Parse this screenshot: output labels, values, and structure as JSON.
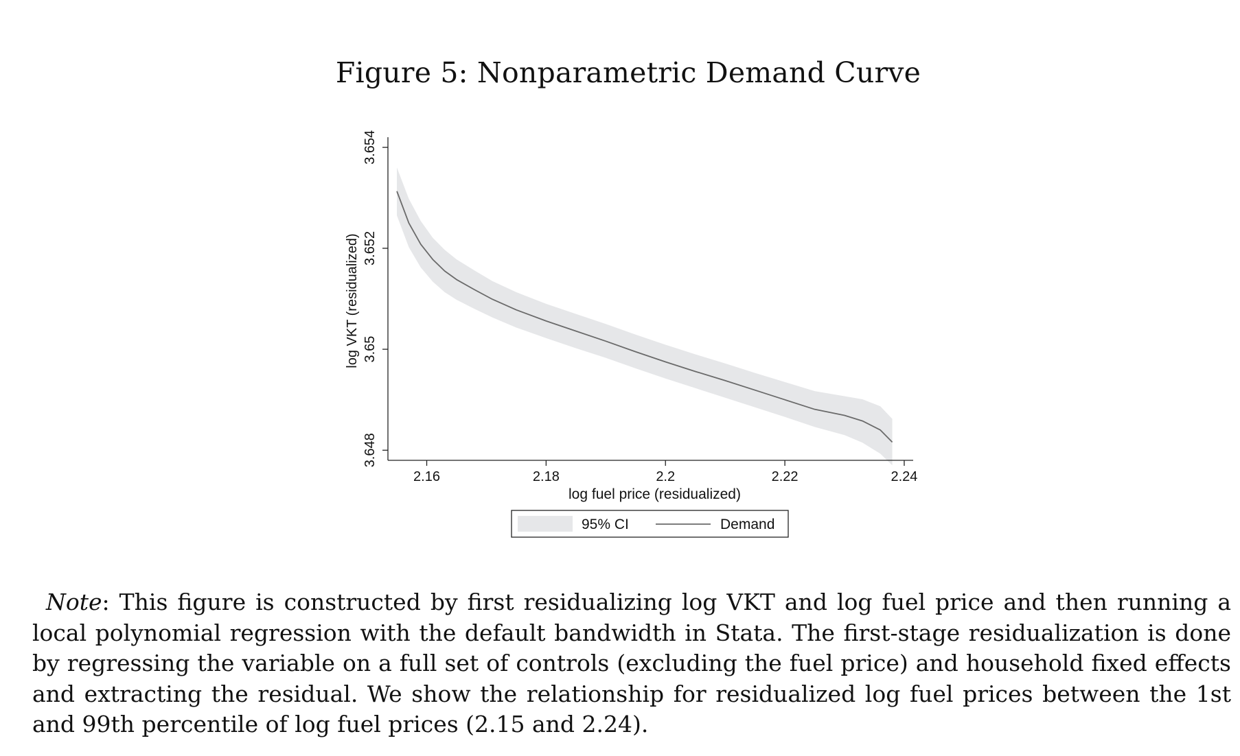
{
  "figure": {
    "title": "Figure 5: Nonparametric Demand Curve"
  },
  "chart_data": {
    "type": "line",
    "xlabel": "log fuel price (residualized)",
    "ylabel": "log VKT (residualized)",
    "xlim": [
      2.1535,
      2.2415
    ],
    "ylim": [
      3.6478,
      3.6542
    ],
    "xticks": [
      2.16,
      2.18,
      2.2,
      2.22,
      2.24
    ],
    "xtick_labels": [
      "2.16",
      "2.18",
      "2.2",
      "2.22",
      "2.24"
    ],
    "yticks": [
      3.648,
      3.65,
      3.652,
      3.654
    ],
    "ytick_labels": [
      "3.648",
      "3.65",
      "3.652",
      "3.654"
    ],
    "grid": false,
    "legend_position": "bottom",
    "x": [
      2.155,
      2.157,
      2.159,
      2.161,
      2.163,
      2.165,
      2.168,
      2.171,
      2.175,
      2.18,
      2.185,
      2.19,
      2.195,
      2.2,
      2.205,
      2.21,
      2.215,
      2.22,
      2.225,
      2.23,
      2.233,
      2.236,
      2.238
    ],
    "series": [
      {
        "name": "95% CI",
        "type": "band",
        "lower": [
          3.65265,
          3.65202,
          3.65162,
          3.65134,
          3.65113,
          3.65098,
          3.6508,
          3.65063,
          3.65043,
          3.65022,
          3.65002,
          3.64983,
          3.64962,
          3.64942,
          3.64923,
          3.64904,
          3.64885,
          3.64866,
          3.64846,
          3.6483,
          3.64815,
          3.64793,
          3.6477
        ],
        "upper": [
          3.6536,
          3.65298,
          3.65254,
          3.65221,
          3.65197,
          3.65178,
          3.65156,
          3.65135,
          3.65113,
          3.6509,
          3.6507,
          3.6505,
          3.65029,
          3.65009,
          3.6499,
          3.64972,
          3.64953,
          3.64935,
          3.64917,
          3.64907,
          3.64901,
          3.64887,
          3.64862
        ]
      },
      {
        "name": "Demand",
        "type": "line",
        "values": [
          3.65313,
          3.6525,
          3.65208,
          3.65178,
          3.65155,
          3.65138,
          3.65118,
          3.65099,
          3.65078,
          3.65056,
          3.65036,
          3.65016,
          3.64995,
          3.64975,
          3.64956,
          3.64938,
          3.64919,
          3.649,
          3.64881,
          3.64869,
          3.64858,
          3.6484,
          3.64816
        ]
      }
    ],
    "colors": {
      "band": "#e6e7e9",
      "line": "#6a6a6a",
      "axis": "#222222"
    }
  },
  "note": {
    "label": "Note",
    "text": ":  This figure is constructed by first residualizing log VKT and log fuel price and then running a local polynomial regression with the default bandwidth in Stata.  The first-stage residualization is done by regressing the variable on a full set of controls (excluding the fuel price) and household fixed effects and extracting the residual.  We show the relationship for residualized log fuel prices between the 1st and 99th percentile of log fuel prices (2.15 and 2.24)."
  }
}
